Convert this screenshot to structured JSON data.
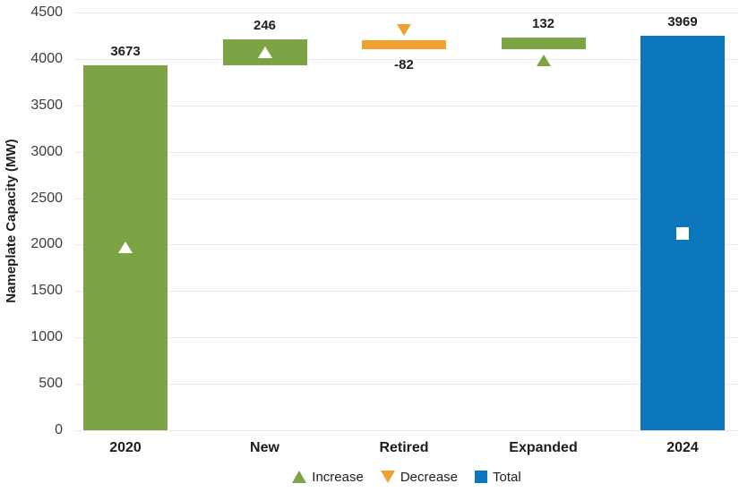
{
  "chart_data": {
    "type": "bar",
    "subtype": "waterfall",
    "title": "",
    "xlabel": "",
    "ylabel": "Nameplate Capacity (MW)",
    "ylim": [
      0,
      4500
    ],
    "ytick_interval": 500,
    "ytick_labels": [
      "0",
      "500",
      "1000",
      "1500",
      "2000",
      "2500",
      "3000",
      "3500",
      "4000",
      "4500"
    ],
    "grid": "horizontal",
    "legend_position": "bottom-center",
    "categories": [
      "2020",
      "New",
      "Retired",
      "Expanded",
      "2024"
    ],
    "values": [
      3673,
      246,
      -82,
      132,
      3969
    ],
    "waterfall_note": "3673 + 246 - 82 + 132 = 3969",
    "bars": [
      {
        "category": "2020",
        "value": 3673,
        "data_label": "3673",
        "label_placement": "above",
        "role": "increase",
        "drawn_extent_mw": [
          0,
          3935
        ],
        "marker": {
          "shape": "triangle-up",
          "fill": "#FFFFFF",
          "placement": "inside-center"
        }
      },
      {
        "category": "New",
        "value": 246,
        "data_label": "246",
        "label_placement": "above",
        "role": "increase",
        "drawn_extent_mw": [
          3928,
          4207
        ],
        "marker": {
          "shape": "triangle-up",
          "fill": "#FFFFFF",
          "placement": "inside-center"
        }
      },
      {
        "category": "Retired",
        "value": -82,
        "data_label": "-82",
        "label_placement": "below",
        "role": "decrease",
        "drawn_extent_mw": [
          4104,
          4203
        ],
        "marker": {
          "shape": "triangle-down",
          "fill": "#F0A02D",
          "placement": "above"
        }
      },
      {
        "category": "Expanded",
        "value": 132,
        "data_label": "132",
        "label_placement": "above",
        "role": "increase",
        "drawn_extent_mw": [
          4104,
          4232
        ],
        "marker": {
          "shape": "triangle-up",
          "fill": "#7CA444",
          "placement": "below"
        }
      },
      {
        "category": "2024",
        "value": 3969,
        "data_label": "3969",
        "label_placement": "above",
        "role": "total",
        "drawn_extent_mw": [
          0,
          4249
        ],
        "marker": {
          "shape": "square",
          "fill": "#FFFFFF",
          "placement": "inside-center"
        }
      }
    ],
    "colors": {
      "increase": "#7CA444",
      "decrease": "#F0A02D",
      "total": "#0C76BC",
      "gridline": "#E7E7E7",
      "tick_text": "#3C3C3C",
      "label_text": "#1F1F1F"
    },
    "legend": [
      {
        "label": "Increase",
        "shape": "triangle-up",
        "color": "#7CA444"
      },
      {
        "label": "Decrease",
        "shape": "triangle-down",
        "color": "#F0A02D"
      },
      {
        "label": "Total",
        "shape": "square",
        "color": "#0C76BC"
      }
    ]
  }
}
